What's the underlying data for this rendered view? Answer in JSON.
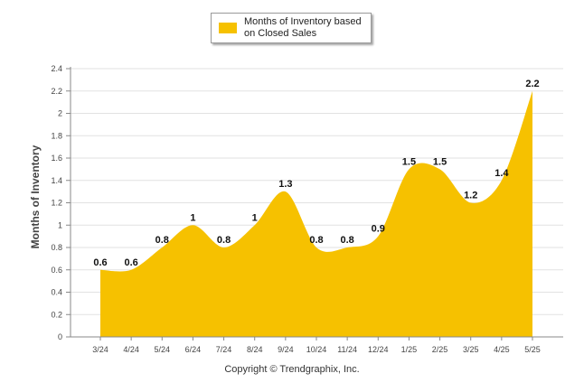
{
  "legend": {
    "label": "Months of Inventory based on Closed Sales",
    "swatch_color": "#f6c100"
  },
  "footer": {
    "copyright": "Copyright © Trendgraphix, Inc."
  },
  "chart_data": {
    "type": "area",
    "categories": [
      "3/24",
      "4/24",
      "5/24",
      "6/24",
      "7/24",
      "8/24",
      "9/24",
      "10/24",
      "11/24",
      "12/24",
      "1/25",
      "2/25",
      "3/25",
      "4/25",
      "5/25"
    ],
    "series": [
      {
        "name": "Months of Inventory based on Closed Sales",
        "values": [
          0.6,
          0.6,
          0.8,
          1,
          0.8,
          1,
          1.3,
          0.8,
          0.8,
          0.9,
          1.5,
          1.5,
          1.2,
          1.4,
          2.2
        ],
        "color": "#f6c100"
      }
    ],
    "data_labels": [
      "0.6",
      "0.6",
      "0.8",
      "1",
      "0.8",
      "1",
      "1.3",
      "0.8",
      "0.8",
      "0.9",
      "1.5",
      "1.5",
      "1.2",
      "1.4",
      "2.2"
    ],
    "ylabel": "Months of Inventory",
    "ylim": [
      0,
      2.4
    ],
    "yticks": [
      "0",
      "0.2",
      "0.4",
      "0.6",
      "0.8",
      "1",
      "1.2",
      "1.4",
      "1.6",
      "1.8",
      "2",
      "2.2",
      "2.4"
    ],
    "grid": true,
    "legend_position": "top-center",
    "smooth": true
  }
}
